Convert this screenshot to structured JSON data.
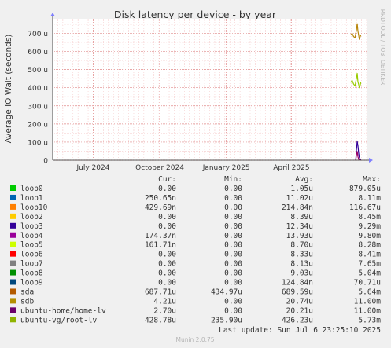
{
  "chart_data": {
    "type": "line",
    "title": "Disk latency per device - by year",
    "ylabel": "Average IO Wait (seconds)",
    "xlabel": "",
    "ylim": [
      0,
      780
    ],
    "y_unit_label": "u",
    "y_ticks": [
      {
        "value": 0,
        "label": "0"
      },
      {
        "value": 100,
        "label": "100 u"
      },
      {
        "value": 200,
        "label": "200 u"
      },
      {
        "value": 300,
        "label": "300 u"
      },
      {
        "value": 400,
        "label": "400 u"
      },
      {
        "value": 500,
        "label": "500 u"
      },
      {
        "value": 600,
        "label": "600 u"
      },
      {
        "value": 700,
        "label": "700 u"
      }
    ],
    "x_range": [
      "2024-05-06",
      "2025-07-14"
    ],
    "x_ticks": [
      {
        "date": "2024-07-01",
        "label": "July 2024"
      },
      {
        "date": "2024-10-01",
        "label": "October 2024"
      },
      {
        "date": "2025-01-01",
        "label": "January 2025"
      },
      {
        "date": "2025-04-01",
        "label": "April 2025"
      }
    ],
    "grid": true,
    "side_label": "RRDTOOL / TOBI OETIKER",
    "series": [
      {
        "name": "sda",
        "color": "#b8860b",
        "points": [
          [
            "2025-06-22",
            690
          ],
          [
            "2025-06-24",
            700
          ],
          [
            "2025-06-26",
            682
          ],
          [
            "2025-06-28",
            676
          ],
          [
            "2025-06-30",
            720
          ],
          [
            "2025-07-01",
            755
          ],
          [
            "2025-07-02",
            712
          ],
          [
            "2025-07-03",
            690
          ],
          [
            "2025-07-04",
            665
          ],
          [
            "2025-07-05",
            680
          ],
          [
            "2025-07-06",
            690
          ]
        ]
      },
      {
        "name": "ubuntu-vg/root-lv",
        "color": "#99cc00",
        "points": [
          [
            "2025-06-22",
            428
          ],
          [
            "2025-06-24",
            440
          ],
          [
            "2025-06-26",
            420
          ],
          [
            "2025-06-28",
            410
          ],
          [
            "2025-06-30",
            455
          ],
          [
            "2025-07-01",
            480
          ],
          [
            "2025-07-02",
            432
          ],
          [
            "2025-07-03",
            418
          ],
          [
            "2025-07-04",
            398
          ],
          [
            "2025-07-05",
            412
          ],
          [
            "2025-07-06",
            429
          ]
        ]
      },
      {
        "name": "loop3",
        "color": "#330099",
        "points": [
          [
            "2025-06-29",
            0
          ],
          [
            "2025-06-30",
            60
          ],
          [
            "2025-07-01",
            105
          ],
          [
            "2025-07-02",
            80
          ],
          [
            "2025-07-03",
            40
          ],
          [
            "2025-07-04",
            15
          ],
          [
            "2025-07-06",
            0
          ]
        ]
      },
      {
        "name": "ubuntu-home/home-lv",
        "color": "#990066",
        "points": [
          [
            "2025-06-29",
            0
          ],
          [
            "2025-06-30",
            30
          ],
          [
            "2025-07-01",
            50
          ],
          [
            "2025-07-02",
            20
          ],
          [
            "2025-07-03",
            5
          ],
          [
            "2025-07-06",
            0
          ]
        ]
      }
    ]
  },
  "legend": {
    "headers": {
      "cur": "Cur:",
      "min": "Min:",
      "avg": "Avg:",
      "max": "Max:"
    },
    "rows": [
      {
        "name": "loop0",
        "color": "#00cc00",
        "cur": "0.00",
        "min": "0.00",
        "avg": "1.05u",
        "max": "879.05u"
      },
      {
        "name": "loop1",
        "color": "#0066b3",
        "cur": "250.65n",
        "min": "0.00",
        "avg": "11.02u",
        "max": "8.11m"
      },
      {
        "name": "loop10",
        "color": "#ff8000",
        "cur": "429.69n",
        "min": "0.00",
        "avg": "214.84n",
        "max": "116.67u"
      },
      {
        "name": "loop2",
        "color": "#ffcc00",
        "cur": "0.00",
        "min": "0.00",
        "avg": "8.39u",
        "max": "8.45m"
      },
      {
        "name": "loop3",
        "color": "#330099",
        "cur": "0.00",
        "min": "0.00",
        "avg": "12.34u",
        "max": "9.29m"
      },
      {
        "name": "loop4",
        "color": "#990099",
        "cur": "174.37n",
        "min": "0.00",
        "avg": "13.93u",
        "max": "9.80m"
      },
      {
        "name": "loop5",
        "color": "#ccff00",
        "cur": "161.71n",
        "min": "0.00",
        "avg": "8.70u",
        "max": "8.28m"
      },
      {
        "name": "loop6",
        "color": "#ff0000",
        "cur": "0.00",
        "min": "0.00",
        "avg": "8.33u",
        "max": "8.41m"
      },
      {
        "name": "loop7",
        "color": "#808080",
        "cur": "0.00",
        "min": "0.00",
        "avg": "8.13u",
        "max": "7.65m"
      },
      {
        "name": "loop8",
        "color": "#008f00",
        "cur": "0.00",
        "min": "0.00",
        "avg": "9.03u",
        "max": "5.04m"
      },
      {
        "name": "loop9",
        "color": "#00487d",
        "cur": "0.00",
        "min": "0.00",
        "avg": "124.84n",
        "max": "70.71u"
      },
      {
        "name": "sda",
        "color": "#b35a00",
        "cur": "687.71u",
        "min": "434.97u",
        "avg": "689.59u",
        "max": "5.64m"
      },
      {
        "name": "sdb",
        "color": "#b38f00",
        "cur": "4.21u",
        "min": "0.00",
        "avg": "20.74u",
        "max": "11.00m"
      },
      {
        "name": "ubuntu-home/home-lv",
        "color": "#6b006b",
        "cur": "2.70u",
        "min": "0.00",
        "avg": "20.21u",
        "max": "11.00m"
      },
      {
        "name": "ubuntu-vg/root-lv",
        "color": "#8fb300",
        "cur": "428.78u",
        "min": "235.90u",
        "avg": "426.23u",
        "max": "5.73m"
      }
    ]
  },
  "footer": {
    "last_update": "Last update: Sun Jul  6 23:25:10 2025",
    "munin_version": "Munin 2.0.75"
  }
}
